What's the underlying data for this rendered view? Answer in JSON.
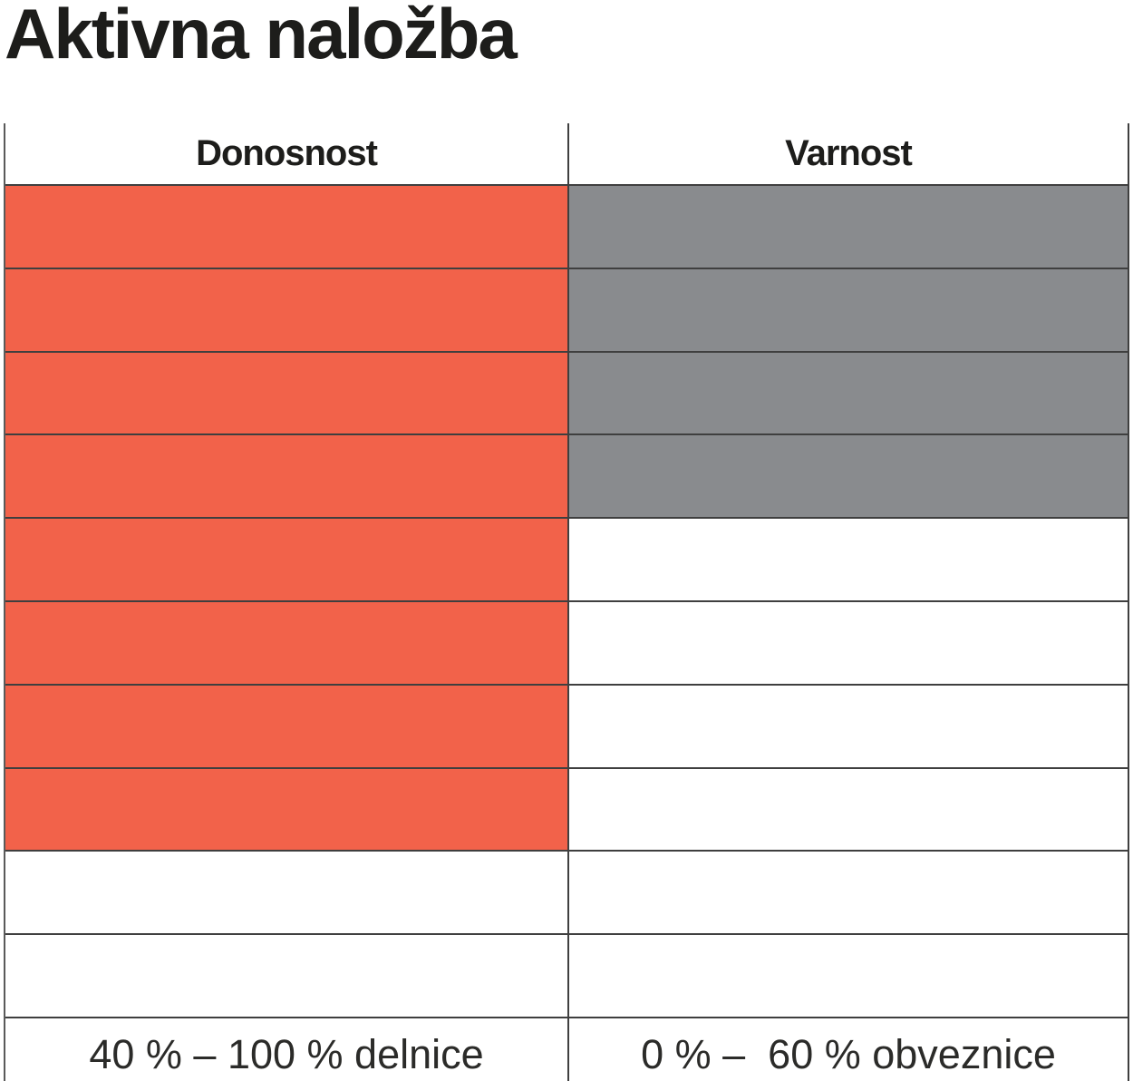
{
  "title": "Aktivna naložba",
  "chart_data": {
    "type": "bar",
    "title": "Aktivna naložba",
    "categories": [
      "Donosnost",
      "Varnost"
    ],
    "values": [
      8,
      4
    ],
    "value_unit": "filled cells (top-down) out of 10 grid rows",
    "ylim": [
      0,
      10
    ],
    "grid": true,
    "legend_position": "none",
    "colors": {
      "Donosnost": "#F2624A",
      "Varnost": "#898B8E"
    },
    "annotations": [
      "40 % – 100 % delnice",
      "0 % –  60 % obveznice"
    ]
  },
  "table": {
    "total_rows": 10,
    "columns": [
      {
        "header": "Donosnost",
        "filled_rows": 8,
        "fill_color": "#F2624A",
        "footer": "40 % – 100 % delnice"
      },
      {
        "header": "Varnost",
        "filled_rows": 4,
        "fill_color": "#898B8E",
        "footer": "0 % –  60 % obveznice"
      }
    ]
  }
}
